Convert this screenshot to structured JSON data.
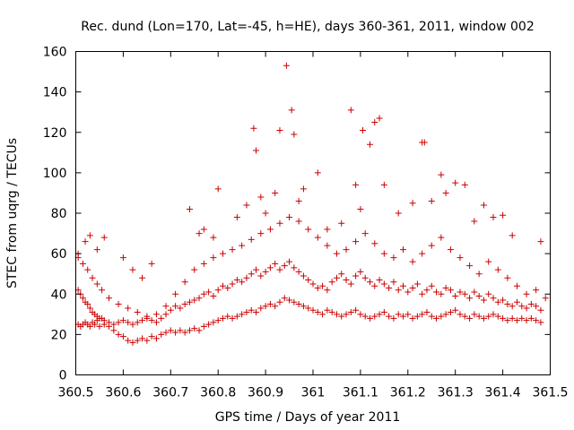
{
  "chart_data": {
    "type": "scatter",
    "title": "Rec. dund (Lon=170, Lat=-45, h=HE), days 360-361, 2011, window 002",
    "xlabel": "GPS time / Days of year 2011",
    "ylabel": "STEC from uqrg / TECUs",
    "xlim": [
      360.5,
      361.5
    ],
    "ylim": [
      0,
      160
    ],
    "xticks": [
      "360.5",
      "360.6",
      "360.7",
      "360.8",
      "360.9",
      "361",
      "361.1",
      "361.2",
      "361.3",
      "361.4",
      "361.5"
    ],
    "yticks": [
      "0",
      "20",
      "40",
      "60",
      "80",
      "100",
      "120",
      "140",
      "160"
    ],
    "grid": false,
    "legend": "none",
    "marker": "plus",
    "color": "#cc0000",
    "series": [
      {
        "x": [
          360.505,
          360.51,
          360.515,
          360.52,
          360.525,
          360.53,
          360.535,
          360.54,
          360.545,
          360.55,
          360.555,
          360.56,
          360.57,
          360.58,
          360.59,
          360.6,
          360.61,
          360.62,
          360.63,
          360.64,
          360.65,
          360.66,
          360.67,
          360.68,
          360.69,
          360.7,
          360.71,
          360.72,
          360.73,
          360.74,
          360.75,
          360.76,
          360.77,
          360.78,
          360.79,
          360.8,
          360.81,
          360.82,
          360.83,
          360.84,
          360.85,
          360.86,
          360.87,
          360.88,
          360.89,
          360.9,
          360.91,
          360.92,
          360.93,
          360.94,
          360.95,
          360.96,
          360.97,
          360.98,
          360.99,
          361.0,
          361.01,
          361.02,
          361.03,
          361.04,
          361.05,
          361.06,
          361.07,
          361.08,
          361.09,
          361.1,
          361.11,
          361.12,
          361.13,
          361.14,
          361.15,
          361.16,
          361.17,
          361.18,
          361.19,
          361.2,
          361.21,
          361.22,
          361.23,
          361.24,
          361.25,
          361.26,
          361.27,
          361.28,
          361.29,
          361.3,
          361.31,
          361.32,
          361.33,
          361.34,
          361.35,
          361.36,
          361.37,
          361.38,
          361.39,
          361.4,
          361.41,
          361.42,
          361.43,
          361.44,
          361.45,
          361.46,
          361.47,
          361.48
        ],
        "y": [
          25,
          24,
          25,
          26,
          25,
          24,
          26,
          25,
          27,
          24,
          28,
          25,
          24,
          22,
          20,
          19,
          17,
          16,
          17,
          18,
          17,
          19,
          18,
          20,
          21,
          22,
          21,
          22,
          21,
          22,
          23,
          22,
          24,
          25,
          26,
          27,
          28,
          29,
          28,
          29,
          30,
          31,
          32,
          31,
          33,
          34,
          35,
          34,
          36,
          38,
          37,
          36,
          35,
          34,
          33,
          32,
          31,
          30,
          32,
          31,
          30,
          29,
          30,
          31,
          32,
          30,
          29,
          28,
          29,
          30,
          31,
          29,
          28,
          30,
          29,
          30,
          28,
          29,
          30,
          31,
          29,
          28,
          29,
          30,
          31,
          32,
          30,
          29,
          28,
          30,
          29,
          28,
          29,
          30,
          29,
          28,
          27,
          28,
          27,
          28,
          27,
          28,
          27,
          26
        ]
      },
      {
        "x": [
          360.505,
          360.51,
          360.515,
          360.52,
          360.525,
          360.53,
          360.535,
          360.54,
          360.545,
          360.55,
          360.56,
          360.57,
          360.58,
          360.59,
          360.6,
          360.61,
          360.62,
          360.63,
          360.64,
          360.65,
          360.66,
          360.67,
          360.68,
          360.69,
          360.7,
          360.71,
          360.72,
          360.73,
          360.74,
          360.75,
          360.76,
          360.77,
          360.78,
          360.79,
          360.8,
          360.81,
          360.82,
          360.83,
          360.84,
          360.85,
          360.86,
          360.87,
          360.88,
          360.89,
          360.9,
          360.91,
          360.92,
          360.93,
          360.94,
          360.95,
          360.96,
          360.97,
          360.98,
          360.99,
          361.0,
          361.01,
          361.02,
          361.03,
          361.04,
          361.05,
          361.06,
          361.07,
          361.08,
          361.09,
          361.1,
          361.11,
          361.12,
          361.13,
          361.14,
          361.15,
          361.16,
          361.17,
          361.18,
          361.19,
          361.2,
          361.21,
          361.22,
          361.23,
          361.24,
          361.25,
          361.26,
          361.27,
          361.28,
          361.29,
          361.3,
          361.31,
          361.32,
          361.33,
          361.34,
          361.35,
          361.36,
          361.37,
          361.38,
          361.39,
          361.4,
          361.41,
          361.42,
          361.43,
          361.44,
          361.45,
          361.46,
          361.47,
          361.48
        ],
        "y": [
          42,
          40,
          38,
          36,
          35,
          33,
          31,
          30,
          29,
          28,
          27,
          26,
          25,
          26,
          27,
          26,
          25,
          26,
          27,
          28,
          27,
          26,
          28,
          30,
          32,
          34,
          33,
          35,
          36,
          37,
          38,
          40,
          41,
          39,
          42,
          44,
          43,
          45,
          47,
          46,
          48,
          50,
          52,
          49,
          51,
          53,
          55,
          52,
          54,
          56,
          53,
          51,
          49,
          47,
          45,
          43,
          44,
          42,
          46,
          48,
          50,
          47,
          45,
          49,
          51,
          48,
          46,
          44,
          47,
          45,
          43,
          46,
          42,
          44,
          41,
          43,
          45,
          40,
          42,
          44,
          41,
          40,
          43,
          42,
          39,
          41,
          40,
          38,
          41,
          39,
          37,
          40,
          38,
          36,
          37,
          35,
          34,
          36,
          34,
          33,
          35,
          34,
          32
        ]
      },
      {
        "x": [
          360.505,
          360.515,
          360.525,
          360.535,
          360.545,
          360.555,
          360.57,
          360.59,
          360.61,
          360.63,
          360.65,
          360.67,
          360.69,
          360.71,
          360.73,
          360.75,
          360.77,
          360.79,
          360.81,
          360.83,
          360.85,
          360.87,
          360.89,
          360.91,
          360.93,
          360.95,
          360.97,
          360.99,
          361.01,
          361.03,
          361.05,
          361.07,
          361.09,
          361.11,
          361.13,
          361.15,
          361.17,
          361.19,
          361.21,
          361.23,
          361.25,
          361.27,
          361.29,
          361.31,
          361.33,
          361.35,
          361.37,
          361.39,
          361.41,
          361.43,
          361.45,
          361.47,
          361.49
        ],
        "y": [
          58,
          55,
          52,
          48,
          45,
          42,
          38,
          35,
          33,
          31,
          29,
          30,
          34,
          40,
          46,
          52,
          55,
          58,
          60,
          62,
          64,
          67,
          70,
          72,
          75,
          78,
          76,
          72,
          68,
          64,
          60,
          62,
          66,
          70,
          65,
          60,
          58,
          62,
          56,
          60,
          64,
          68,
          62,
          58,
          54,
          50,
          56,
          52,
          48,
          44,
          40,
          42,
          38
        ]
      },
      {
        "x": [
          360.505,
          360.52,
          360.53,
          360.545,
          360.56,
          360.6,
          360.62,
          360.64,
          360.66,
          360.74,
          360.76,
          360.77,
          360.79,
          360.8,
          360.84,
          360.86,
          360.875,
          360.88,
          360.89,
          360.9,
          360.92,
          360.93,
          360.944,
          360.955,
          360.96,
          360.97,
          360.98,
          361.01,
          361.03,
          361.06,
          361.08,
          361.09,
          361.1,
          361.105,
          361.12,
          361.13,
          361.14,
          361.15,
          361.18,
          361.21,
          361.23,
          361.235,
          361.25,
          361.27,
          361.28,
          361.3,
          361.32,
          361.34,
          361.36,
          361.38,
          361.4,
          361.42,
          361.48
        ],
        "y": [
          60,
          66,
          69,
          62,
          68,
          58,
          52,
          48,
          55,
          82,
          70,
          72,
          68,
          92,
          78,
          84,
          122,
          111,
          88,
          80,
          90,
          121,
          153,
          131,
          119,
          86,
          92,
          100,
          72,
          75,
          131,
          94,
          82,
          121,
          114,
          125,
          127,
          94,
          80,
          85,
          115,
          115,
          86,
          99,
          90,
          95,
          94,
          76,
          84,
          78,
          79,
          69,
          66
        ]
      }
    ]
  }
}
